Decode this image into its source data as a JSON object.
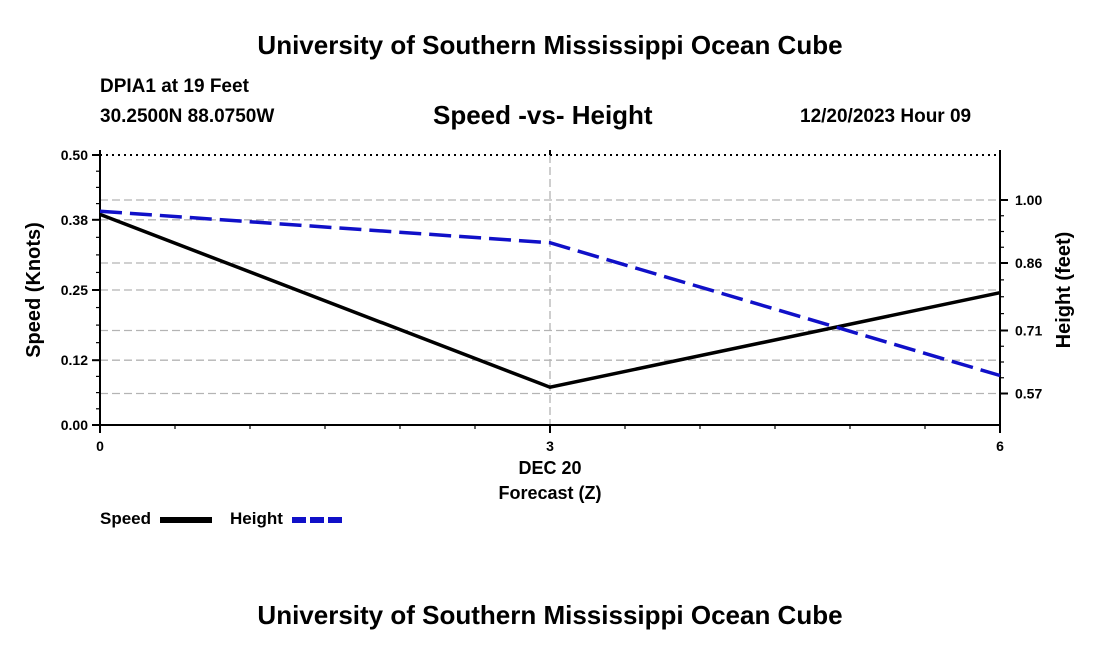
{
  "header": {
    "title": "University of Southern Mississippi Ocean Cube",
    "station": "DPIA1 at 19 Feet",
    "coords": "30.2500N  88.0750W",
    "subtitle": "Speed -vs- Height",
    "datetime": "12/20/2023 Hour 09"
  },
  "footer": {
    "title": "University of Southern Mississippi Ocean Cube"
  },
  "legend": {
    "speed_label": "Speed",
    "height_label": "Height"
  },
  "colors": {
    "speed": "#000000",
    "height": "#1010c8",
    "grid": "#b4b4b4"
  },
  "chart_data": {
    "type": "line",
    "title": "Speed -vs- Height",
    "xlabel": "Forecast (Z)",
    "xlabel_date": "DEC 20",
    "ylabel_left": "Speed (Knots)",
    "ylabel_right": "Height (feet)",
    "x": [
      0,
      3,
      6
    ],
    "x_ticks": [
      "0",
      "3",
      "6"
    ],
    "xlim": [
      0,
      6
    ],
    "ylim_left": [
      0.0,
      0.5
    ],
    "ylim_right": [
      0.5,
      1.1
    ],
    "y_ticks_left": [
      "0.00",
      "0.12",
      "0.25",
      "0.38",
      "0.50"
    ],
    "y_ticks_right": [
      "0.57",
      "0.71",
      "0.86",
      "1.00"
    ],
    "grid": true,
    "series": [
      {
        "name": "Speed",
        "axis": "left",
        "style": "solid",
        "values": [
          0.39,
          0.07,
          0.245
        ]
      },
      {
        "name": "Height",
        "axis": "right",
        "style": "dashed",
        "values": [
          0.975,
          0.905,
          0.61
        ]
      }
    ]
  }
}
